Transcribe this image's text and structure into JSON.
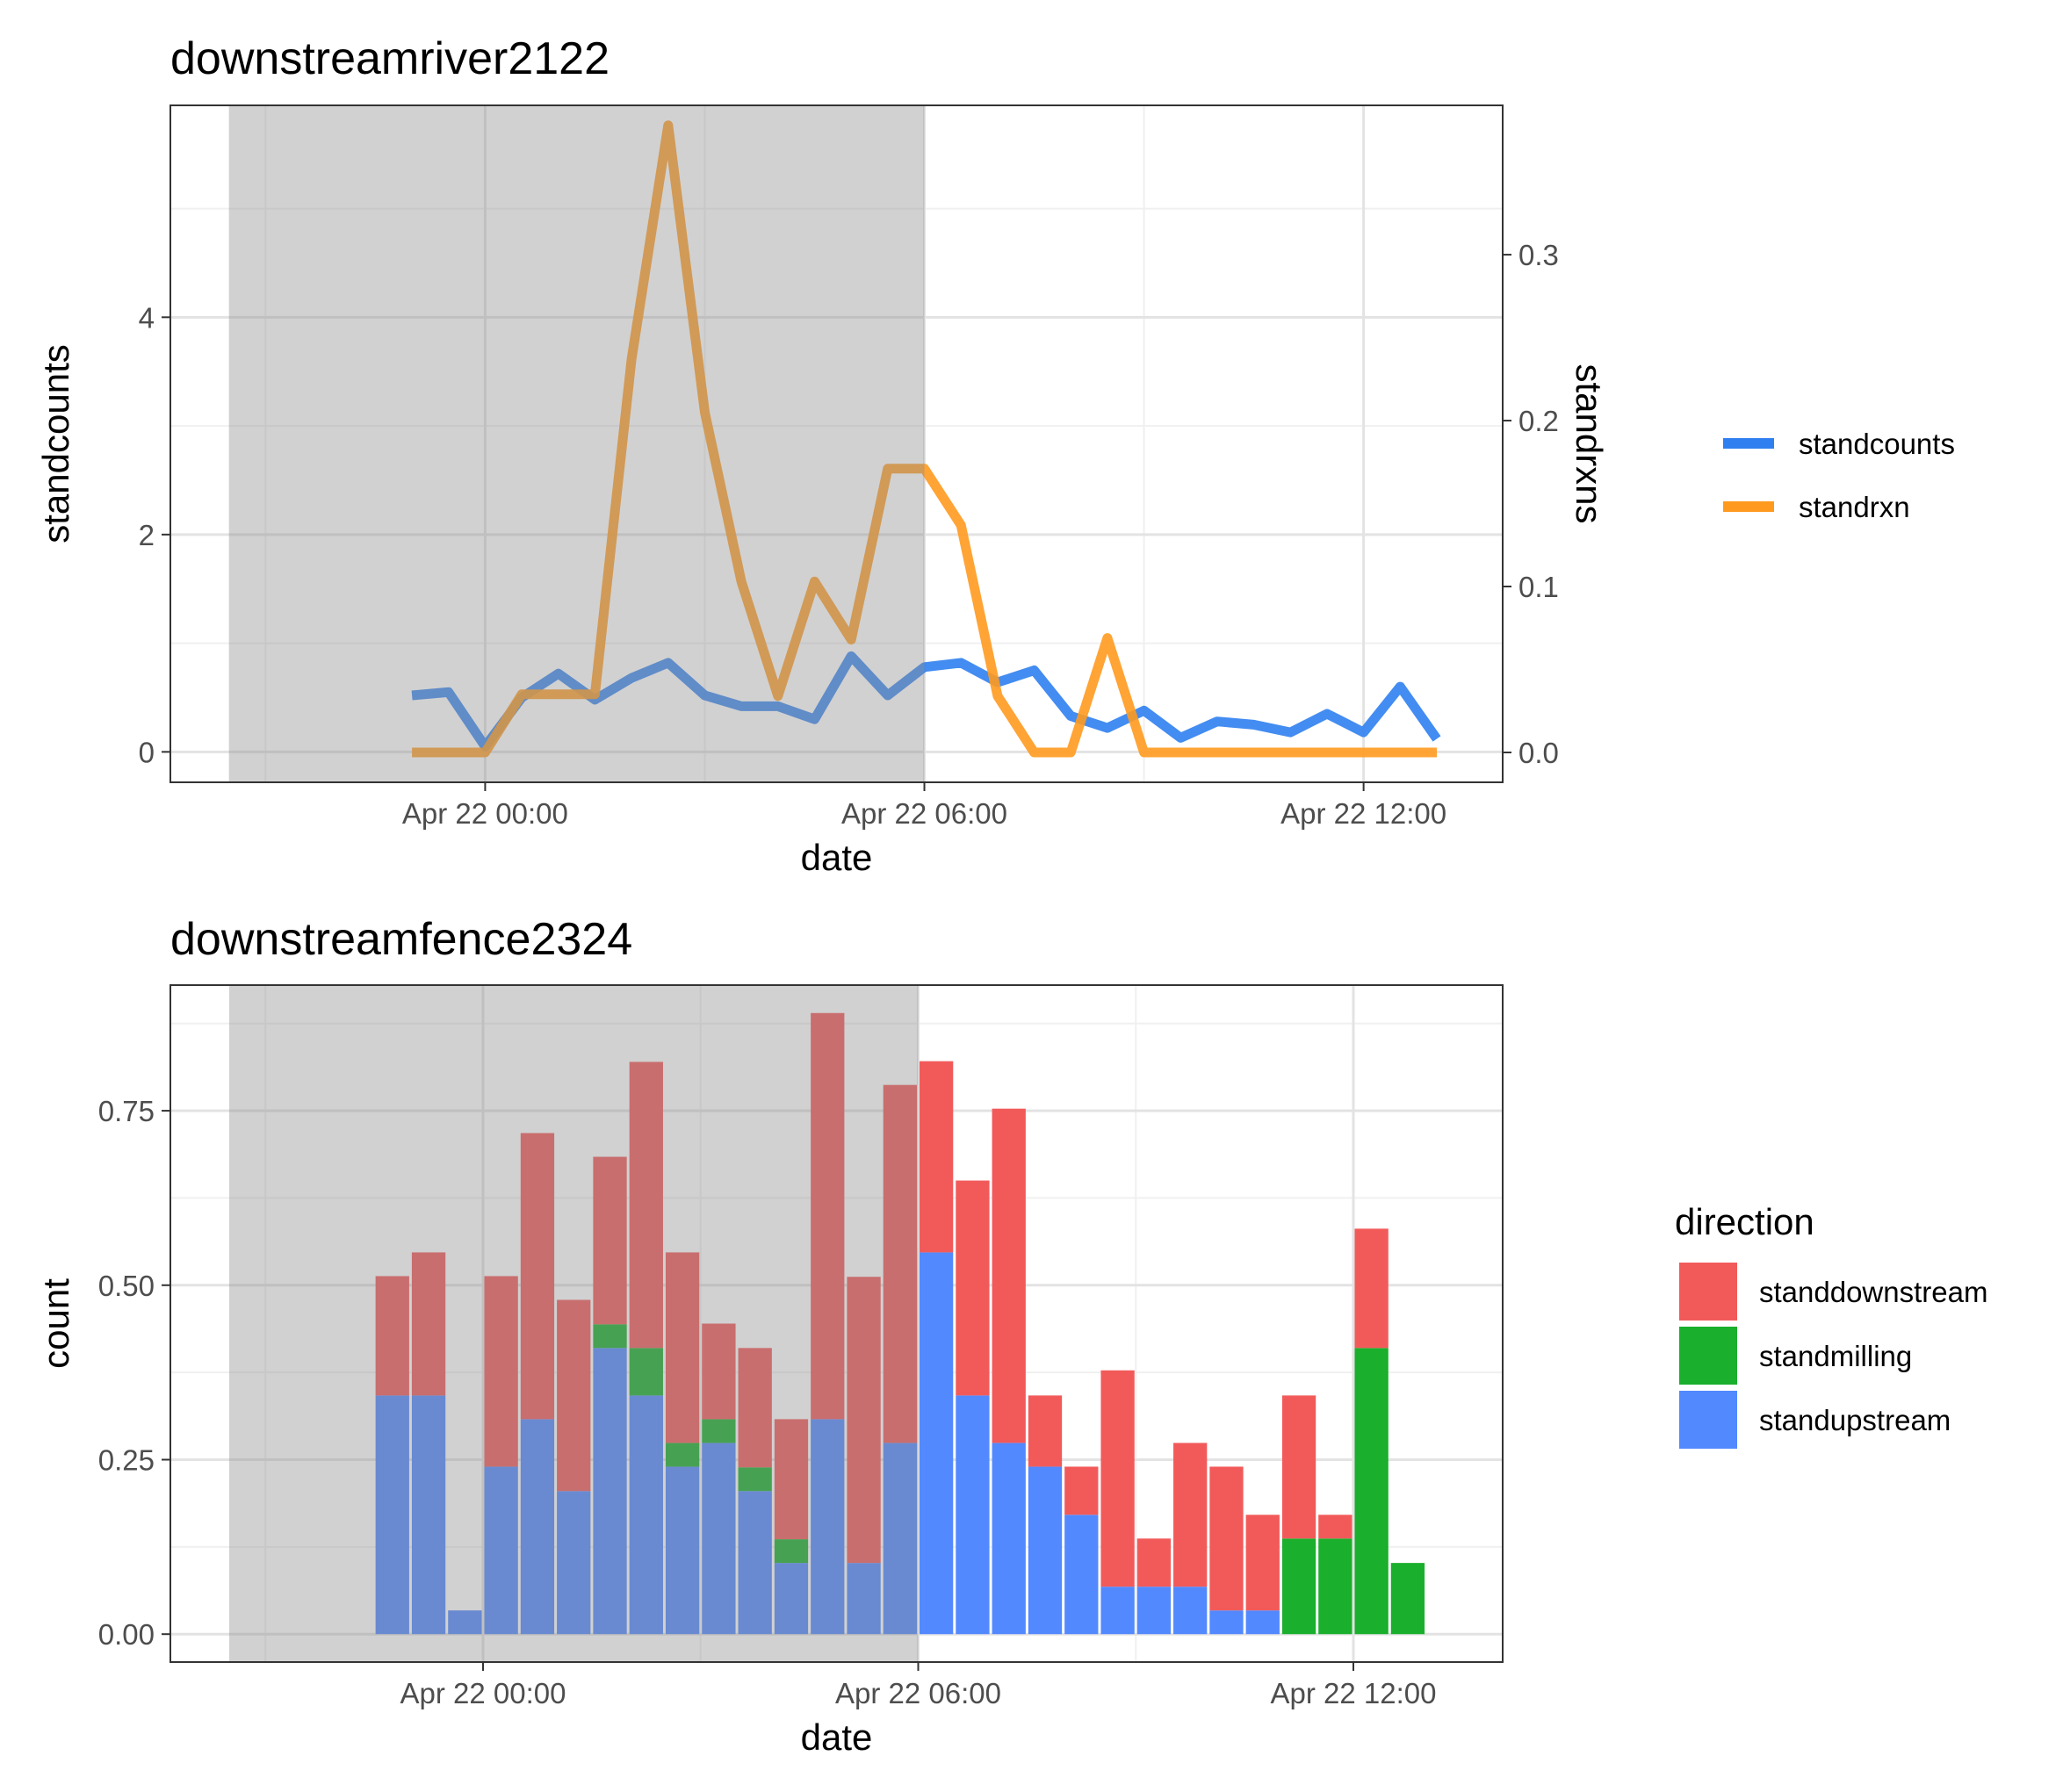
{
  "chart_data": [
    {
      "type": "line",
      "title": "downstreamriver2122",
      "xlabel": "date",
      "ylabel": "standcounts",
      "y2label": "standrxns",
      "x_ticks": [
        "Apr 22 00:00",
        "Apr 22 06:00",
        "Apr 22 12:00"
      ],
      "x_tick_hours": [
        0,
        6,
        12
      ],
      "xlim_hours": [
        -4.3,
        13.9
      ],
      "ylim": [
        -0.28,
        5.95
      ],
      "y_ticks": [
        0,
        2,
        4
      ],
      "y2lim": [
        -0.018,
        0.39
      ],
      "y2_ticks": [
        0.0,
        0.1,
        0.2,
        0.3
      ],
      "y2_tick_labels": [
        "0.0",
        "0.1",
        "0.2",
        "0.3"
      ],
      "shaded_region_hours": [
        -3.5,
        6
      ],
      "grid": true,
      "legend_position": "right",
      "series": [
        {
          "name": "standcounts",
          "axis": "left",
          "color": "#2f7ff0",
          "x_hours": [
            -1,
            -0.5,
            0,
            0.5,
            1,
            1.5,
            2,
            2.5,
            3,
            3.5,
            4,
            4.5,
            5,
            5.5,
            6,
            6.5,
            7,
            7.5,
            8,
            8.5,
            9,
            9.5,
            10,
            10.5,
            11,
            11.5,
            12,
            12.5,
            13
          ],
          "values": [
            0.52,
            0.55,
            0.05,
            0.5,
            0.72,
            0.48,
            0.68,
            0.82,
            0.52,
            0.42,
            0.42,
            0.3,
            0.88,
            0.52,
            0.78,
            0.82,
            0.64,
            0.75,
            0.33,
            0.22,
            0.38,
            0.13,
            0.28,
            0.25,
            0.18,
            0.35,
            0.18,
            0.6,
            0.12
          ]
        },
        {
          "name": "standrxn",
          "axis": "right",
          "color": "#ff9a1f",
          "x_hours": [
            -1,
            -0.5,
            0,
            0.5,
            1,
            1.5,
            2,
            2.5,
            3,
            3.5,
            4,
            4.5,
            5,
            5.5,
            6,
            6.5,
            7,
            7.5,
            8,
            8.5,
            9,
            9.5,
            10,
            10.5,
            11,
            11.5,
            12,
            12.5,
            13
          ],
          "values": [
            0.0,
            0.0,
            0.0,
            0.035,
            0.035,
            0.035,
            0.237,
            0.378,
            0.205,
            0.103,
            0.034,
            0.103,
            0.068,
            0.171,
            0.171,
            0.137,
            0.034,
            0.0,
            0.0,
            0.069,
            0.0,
            0.0,
            0.0,
            0.0,
            0.0,
            0.0,
            0.0,
            0.0,
            0.0
          ]
        }
      ]
    },
    {
      "type": "bar",
      "stacked": true,
      "title": "downstreamfence2324",
      "xlabel": "date",
      "ylabel": "count",
      "legend_title": "direction",
      "x_ticks": [
        "Apr 22 00:00",
        "Apr 22 06:00",
        "Apr 22 12:00"
      ],
      "x_tick_hours": [
        0,
        6,
        12
      ],
      "xlim_hours": [
        -3.5,
        14
      ],
      "ylim": [
        -0.04,
        0.93
      ],
      "y_ticks": [
        0.0,
        0.25,
        0.5,
        0.75
      ],
      "y_tick_labels": [
        "0.00",
        "0.25",
        "0.50",
        "0.75"
      ],
      "shaded_region_hours": [
        -3.5,
        6
      ],
      "grid": true,
      "legend_position": "right",
      "x_hours": [
        -1.25,
        -0.75,
        -0.25,
        0.25,
        0.75,
        1.25,
        1.75,
        2.25,
        2.75,
        3.25,
        3.75,
        4.25,
        4.75,
        5.25,
        5.75,
        6.25,
        6.75,
        7.25,
        7.75,
        8.25,
        8.75,
        9.25,
        9.75,
        10.25,
        10.75,
        11.25,
        11.75,
        12.25,
        12.75
      ],
      "series": [
        {
          "name": "standupstream",
          "color": "#5289ff",
          "values": [
            0.342,
            0.342,
            0.034,
            0.24,
            0.308,
            0.205,
            0.41,
            0.342,
            0.24,
            0.274,
            0.205,
            0.102,
            0.308,
            0.102,
            0.274,
            0.547,
            0.342,
            0.274,
            0.24,
            0.171,
            0.068,
            0.068,
            0.068,
            0.034,
            0.034,
            0.0,
            0.0,
            0.0,
            0.0
          ]
        },
        {
          "name": "standmilling",
          "color": "#1aaf2c",
          "values": [
            0.0,
            0.0,
            0.0,
            0.0,
            0.0,
            0.0,
            0.034,
            0.068,
            0.034,
            0.034,
            0.034,
            0.034,
            0.0,
            0.0,
            0.0,
            0.0,
            0.0,
            0.0,
            0.0,
            0.0,
            0.0,
            0.0,
            0.0,
            0.0,
            0.0,
            0.137,
            0.137,
            0.41,
            0.102
          ]
        },
        {
          "name": "standdownstream",
          "color": "#f25a5a",
          "values": [
            0.171,
            0.205,
            0.0,
            0.273,
            0.41,
            0.274,
            0.24,
            0.41,
            0.273,
            0.137,
            0.171,
            0.172,
            0.582,
            0.41,
            0.513,
            0.274,
            0.308,
            0.479,
            0.102,
            0.069,
            0.31,
            0.069,
            0.206,
            0.206,
            0.137,
            0.205,
            0.034,
            0.171,
            0.0
          ]
        }
      ],
      "legend_order": [
        "standdownstream",
        "standmilling",
        "standupstream"
      ]
    }
  ]
}
